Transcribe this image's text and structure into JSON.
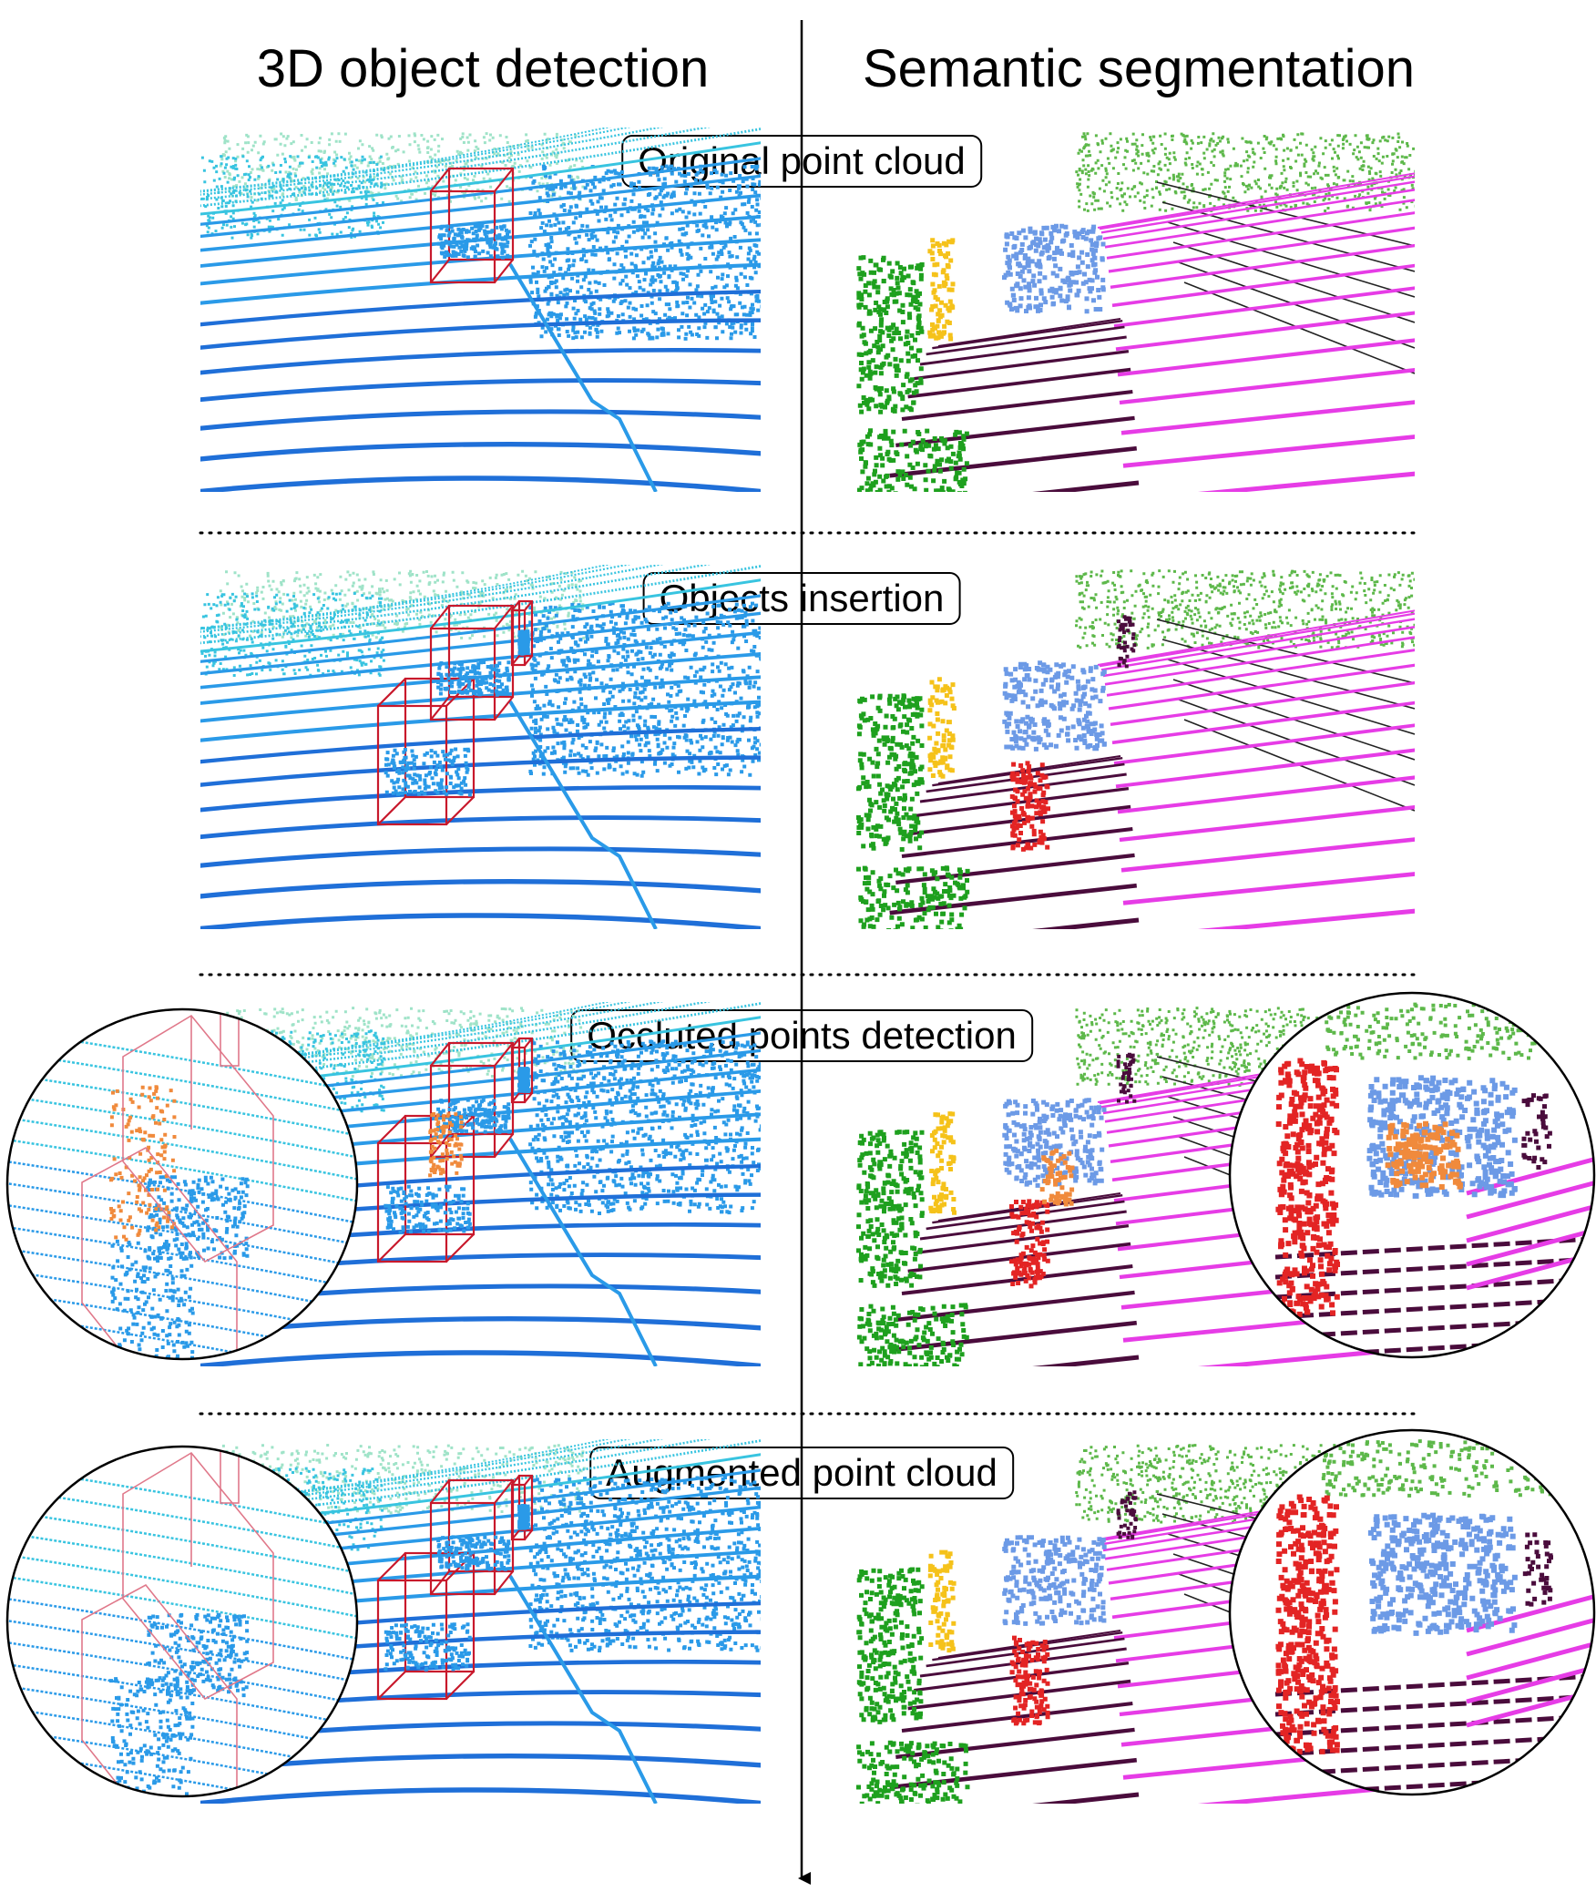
{
  "columns": {
    "left": "3D object detection",
    "right": "Semantic segmentation"
  },
  "stages": [
    {
      "label": "Original point cloud",
      "inserted": false,
      "occluded": false,
      "zoom": false,
      "removed": false
    },
    {
      "label": "Objects insertion",
      "inserted": true,
      "occluded": false,
      "zoom": false,
      "removed": false
    },
    {
      "label": "Occluted points detection",
      "inserted": true,
      "occluded": true,
      "zoom": true,
      "removed": false
    },
    {
      "label": "Augmented point cloud",
      "inserted": true,
      "occluded": false,
      "zoom": true,
      "removed": true
    }
  ],
  "colors": {
    "box": "#c8192c",
    "occluded": "#f08a3c",
    "det_near": "#1f6fd8",
    "det_mid": "#2a9ae8",
    "det_far": "#38c4e0",
    "det_top": "#9fe3c8",
    "road": "#e63ce6",
    "sidewalk": "#4a0c3c",
    "vegetation": "#1ea01e",
    "vegetation_far": "#5db84a",
    "pole": "#f5c21a",
    "car": "#6c9ae6",
    "pedestrian": "#e32424",
    "terrain_line": "#222222"
  }
}
